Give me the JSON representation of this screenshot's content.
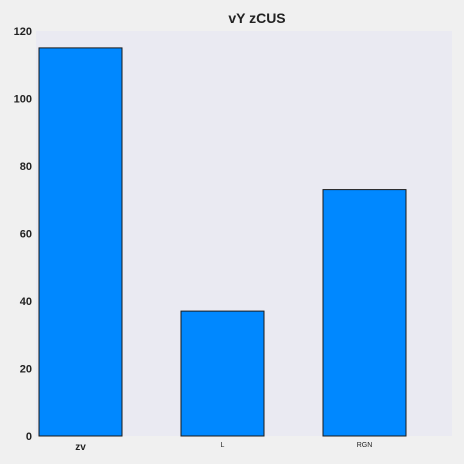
{
  "chart_data": {
    "type": "bar",
    "title": "vY  zCUS",
    "xlabel": "",
    "ylabel": "",
    "categories": [
      "zv",
      "L",
      "RGN"
    ],
    "values": [
      115,
      37,
      73
    ],
    "ylim": [
      0,
      120
    ],
    "yticks": [
      "0",
      "20",
      "40",
      "60",
      "80",
      "100",
      "120"
    ],
    "grid": false,
    "legend": "none",
    "colors": {
      "bar_fill": "#0088ff",
      "bar_edge": "#1a1a1a",
      "plot_background": "#eaeaf2",
      "page_background": "#f0f0f0",
      "text": "#222222"
    }
  }
}
